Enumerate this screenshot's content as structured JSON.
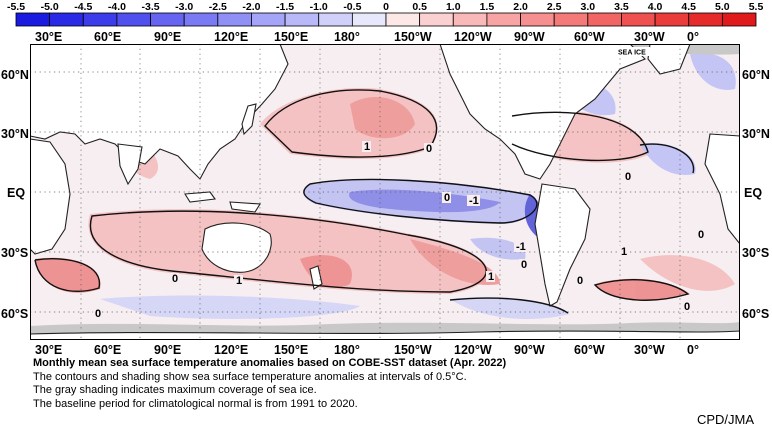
{
  "colorbar": {
    "ticks": [
      "-5.5",
      "-5.0",
      "-4.5",
      "-4.0",
      "-3.5",
      "-3.0",
      "-2.5",
      "-2.0",
      "-1.5",
      "-1.0",
      "-0.5",
      "0",
      "0.5",
      "1.0",
      "1.5",
      "2.0",
      "2.5",
      "3.0",
      "3.5",
      "4.0",
      "4.5",
      "5.0",
      "5.5"
    ],
    "colors": [
      "#1a1ae0",
      "#2a2ae6",
      "#3c3ceb",
      "#5050ef",
      "#6565f2",
      "#7a7af4",
      "#8f8ff6",
      "#a4a4f8",
      "#b9b9fa",
      "#d0d0fb",
      "#e8e8fd",
      "#fde8e8",
      "#fbd0d0",
      "#fab9b9",
      "#f8a4a4",
      "#f68f8f",
      "#f47a7a",
      "#f26565",
      "#ef5050",
      "#eb3c3c",
      "#e62a2a",
      "#e01a1a"
    ]
  },
  "map": {
    "lon_labels": [
      "30°E",
      "60°E",
      "90°E",
      "120°E",
      "150°E",
      "180°",
      "150°W",
      "120°W",
      "90°W",
      "60°W",
      "30°W",
      "0°"
    ],
    "lat_labels": [
      "60°N",
      "30°N",
      "EQ",
      "30°S",
      "60°S"
    ],
    "sea_ice_label": "SEA ICE",
    "contour_labels": [
      "0",
      "0",
      "0",
      "1",
      "1",
      "0",
      "-1",
      "-1",
      "0",
      "1",
      "1",
      "0",
      "0",
      "0",
      "0"
    ]
  },
  "caption": {
    "title": "Monthly mean sea surface temperature anomalies based on COBE-SST dataset (Apr. 2022)",
    "line1": "The contours and shading show sea surface temperature anomalies at intervals of 0.5°C.",
    "line2": "The gray shading indicates maximum coverage of sea ice.",
    "line3": "The baseline period for climatological normal is from 1991 to 2020."
  },
  "credit": "CPD/JMA"
}
